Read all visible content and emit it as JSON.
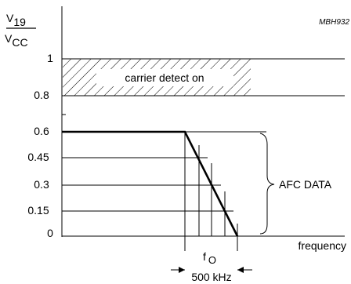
{
  "diagram": {
    "figure_tag": "MBH932",
    "y_axis_label": {
      "numerator_base": "V",
      "numerator_sub": "19",
      "denominator_base": "V",
      "denominator_sub": "CC"
    },
    "x_axis_label": "frequency",
    "y_ticks": [
      "1",
      "0.8",
      "0.6",
      "0.45",
      "0.3",
      "0.15",
      "0"
    ],
    "carrier_band_label": "carrier detect on",
    "afc_label": "AFC DATA",
    "fo_label_base": "f",
    "fo_label_sub": "O",
    "bandwidth_label": "500 kHz"
  }
}
